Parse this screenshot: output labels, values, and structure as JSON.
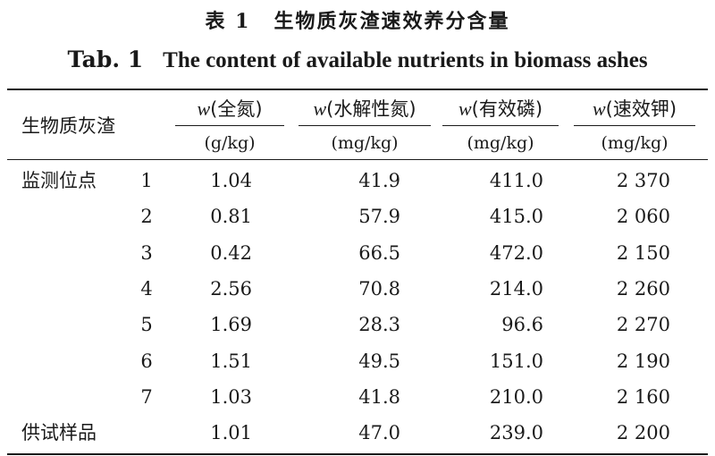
{
  "title_cn": {
    "label": "表 1",
    "text": "生物质灰渣速效养分含量"
  },
  "title_en": {
    "label": "Tab. 1",
    "text": "The content of available nutrients in biomass ashes"
  },
  "header": {
    "row_label": "生物质灰渣",
    "columns": [
      {
        "symbol": "w",
        "name": "(全氮)",
        "unit": "(g/kg)"
      },
      {
        "symbol": "w",
        "name": "(水解性氮)",
        "unit": "(mg/kg)"
      },
      {
        "symbol": "w",
        "name": "(有效磷)",
        "unit": "(mg/kg)"
      },
      {
        "symbol": "w",
        "name": "(速效钾)",
        "unit": "(mg/kg)"
      }
    ]
  },
  "group_label": "监测位点",
  "rows": [
    {
      "id": "1",
      "values": [
        "1.04",
        "41.9",
        "411.0",
        "2 370"
      ]
    },
    {
      "id": "2",
      "values": [
        "0.81",
        "57.9",
        "415.0",
        "2 060"
      ]
    },
    {
      "id": "3",
      "values": [
        "0.42",
        "66.5",
        "472.0",
        "2 150"
      ]
    },
    {
      "id": "4",
      "values": [
        "2.56",
        "70.8",
        "214.0",
        "2 260"
      ]
    },
    {
      "id": "5",
      "values": [
        "1.69",
        "28.3",
        "96.6",
        "2 270"
      ]
    },
    {
      "id": "6",
      "values": [
        "1.51",
        "49.5",
        "151.0",
        "2 190"
      ]
    },
    {
      "id": "7",
      "values": [
        "1.03",
        "41.8",
        "210.0",
        "2 160"
      ]
    }
  ],
  "sample_row": {
    "label": "供试样品",
    "values": [
      "1.01",
      "47.0",
      "239.0",
      "2 200"
    ]
  }
}
